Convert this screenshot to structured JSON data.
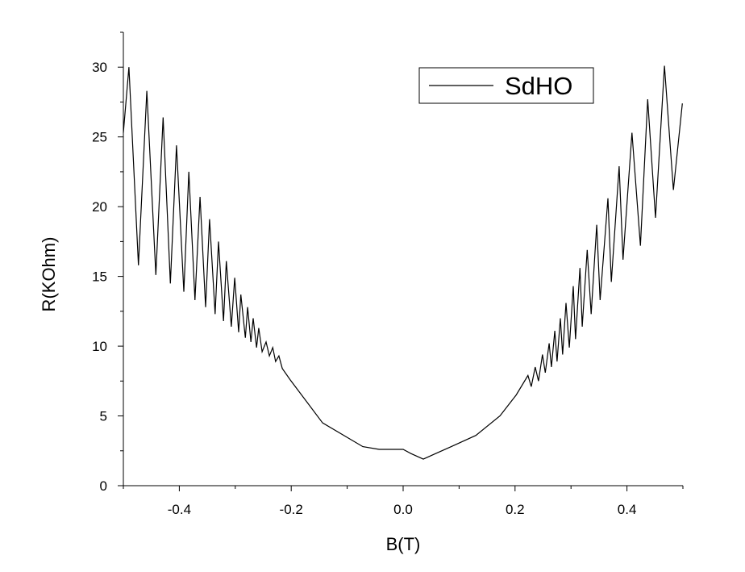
{
  "chart_data": {
    "type": "line",
    "xlabel": "B(T)",
    "ylabel": "R(KOhm)",
    "xlim": [
      -0.5,
      0.5
    ],
    "xticks": [
      -0.4,
      -0.2,
      {
        "value": 0,
        "label": "0.0"
      },
      0.2,
      0.4
    ],
    "xminorticks": [
      -0.5,
      -0.3,
      -0.1,
      0.1,
      0.3,
      0.5
    ],
    "ylim": [
      0,
      32.5
    ],
    "yticks": [
      0,
      5,
      10,
      15,
      20,
      25,
      30
    ],
    "yminorticks": [
      2.5,
      7.5,
      12.5,
      17.5,
      22.5,
      27.5,
      32.5
    ],
    "legend": "upper right",
    "x": [
      -0.5,
      -0.49,
      -0.473,
      -0.458,
      -0.442,
      -0.429,
      -0.416,
      -0.405,
      -0.392,
      -0.383,
      -0.372,
      -0.363,
      -0.353,
      -0.346,
      -0.336,
      -0.33,
      -0.321,
      -0.316,
      -0.307,
      -0.301,
      -0.294,
      -0.29,
      -0.282,
      -0.278,
      -0.272,
      -0.268,
      -0.262,
      -0.258,
      -0.252,
      -0.245,
      -0.239,
      -0.233,
      -0.228,
      -0.222,
      -0.216,
      -0.202,
      -0.144,
      -0.072,
      -0.043,
      0.0,
      0.014,
      0.036,
      0.058,
      0.086,
      0.13,
      0.173,
      0.202,
      0.223,
      0.229,
      0.236,
      0.242,
      0.249,
      0.254,
      0.261,
      0.265,
      0.271,
      0.275,
      0.281,
      0.285,
      0.291,
      0.297,
      0.304,
      0.308,
      0.316,
      0.32,
      0.329,
      0.336,
      0.346,
      0.352,
      0.366,
      0.372,
      0.386,
      0.393,
      0.409,
      0.424,
      0.437,
      0.451,
      0.467,
      0.483,
      0.499
    ],
    "series": [
      {
        "name": "SdHO",
        "color": "#000000",
        "values": [
          25.3,
          30.0,
          15.8,
          28.3,
          15.1,
          26.4,
          14.5,
          24.4,
          13.9,
          22.5,
          13.3,
          20.7,
          12.8,
          19.1,
          12.3,
          17.5,
          11.8,
          16.1,
          11.4,
          14.9,
          11.0,
          13.7,
          10.6,
          12.8,
          10.3,
          12.0,
          9.9,
          11.3,
          9.6,
          10.3,
          9.3,
          9.9,
          8.9,
          9.3,
          8.4,
          7.6,
          4.5,
          2.8,
          2.6,
          2.6,
          2.3,
          1.9,
          2.3,
          2.8,
          3.6,
          5.0,
          6.5,
          7.9,
          7.1,
          8.5,
          7.5,
          9.4,
          8.1,
          10.2,
          8.5,
          11.1,
          8.9,
          12.0,
          9.4,
          13.1,
          9.9,
          14.3,
          10.5,
          15.6,
          11.4,
          16.9,
          12.3,
          18.7,
          13.3,
          20.6,
          14.6,
          22.9,
          16.2,
          25.3,
          17.2,
          27.7,
          19.2,
          30.1,
          21.2,
          27.4
        ]
      }
    ]
  }
}
